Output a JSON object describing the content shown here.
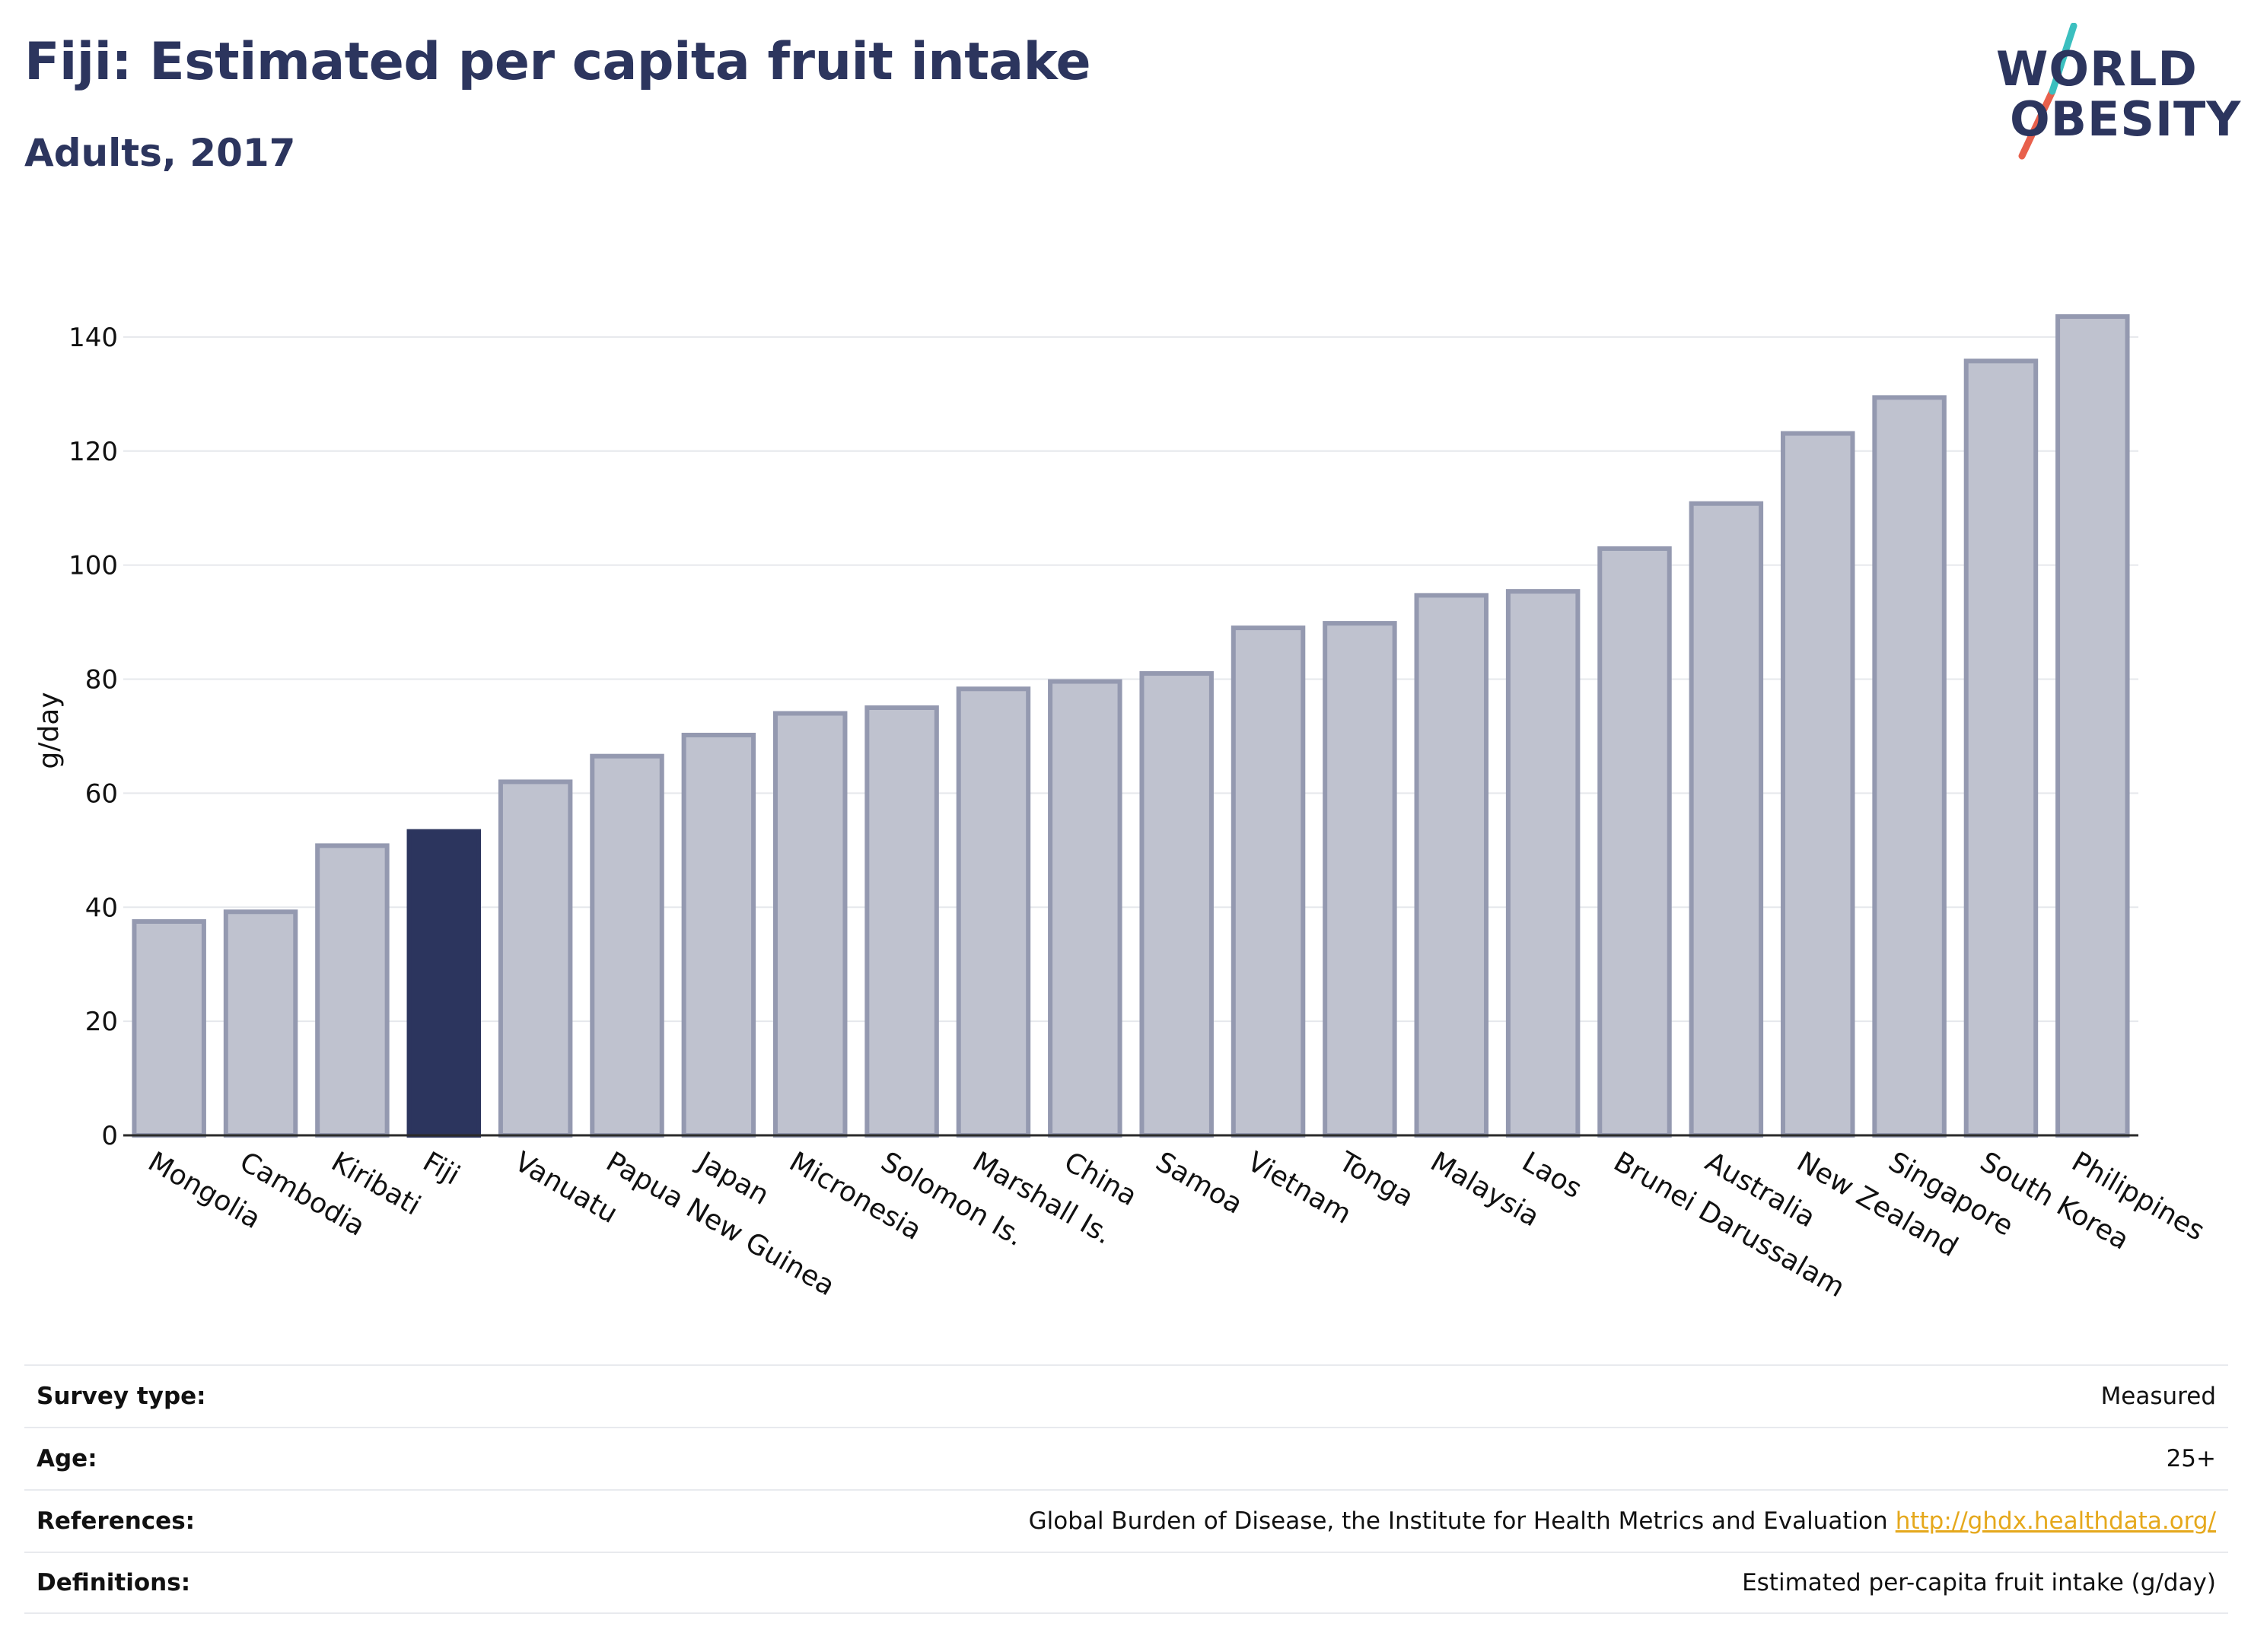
{
  "header": {
    "title": "Fiji: Estimated per capita fruit intake",
    "subtitle": "Adults, 2017"
  },
  "logo": {
    "line1": "WORLD",
    "line2": "OBESITY",
    "text_color": "#2c355e",
    "slash_color_top": "#3bbfbf",
    "slash_color_bottom": "#e8604c"
  },
  "colors": {
    "highlight_bar": "#2c355e",
    "other_bar_fill": "#bfc2cf",
    "other_bar_stroke": "#9499b0",
    "link": "#e5a81c"
  },
  "chart_data": {
    "type": "bar",
    "title": "Fiji: Estimated per capita fruit intake",
    "subtitle": "Adults, 2017",
    "xlabel": "",
    "ylabel": "g/day",
    "ylim": [
      0,
      150
    ],
    "yticks": [
      0,
      20,
      40,
      60,
      80,
      100,
      120,
      140
    ],
    "grid": true,
    "highlight": "Fiji",
    "categories": [
      "Mongolia",
      "Cambodia",
      "Kiribati",
      "Fiji",
      "Vanuatu",
      "Papua New Guinea",
      "Japan",
      "Micronesia",
      "Solomon Is.",
      "Marshall Is.",
      "China",
      "Samoa",
      "Vietnam",
      "Tonga",
      "Malaysia",
      "Laos",
      "Brunei Darussalam",
      "Australia",
      "New Zealand",
      "Singapore",
      "South Korea",
      "Philippines"
    ],
    "values": [
      37.5,
      39.2,
      50.8,
      53.3,
      62,
      66.5,
      70.2,
      74,
      75,
      78.3,
      79.6,
      81,
      89,
      89.8,
      94.7,
      95.4,
      102.9,
      110.8,
      123.1,
      129.4,
      135.8,
      143.6
    ]
  },
  "meta": {
    "rows": [
      {
        "label": "Survey type:",
        "value": "Measured"
      },
      {
        "label": "Age:",
        "value": "25+"
      },
      {
        "label": "References:",
        "value": "Global Burden of Disease, the Institute for Health Metrics and Evaluation",
        "link": "http://ghdx.healthdata.org/"
      },
      {
        "label": "Definitions:",
        "value": "Estimated per-capita fruit intake (g/day)"
      }
    ]
  }
}
